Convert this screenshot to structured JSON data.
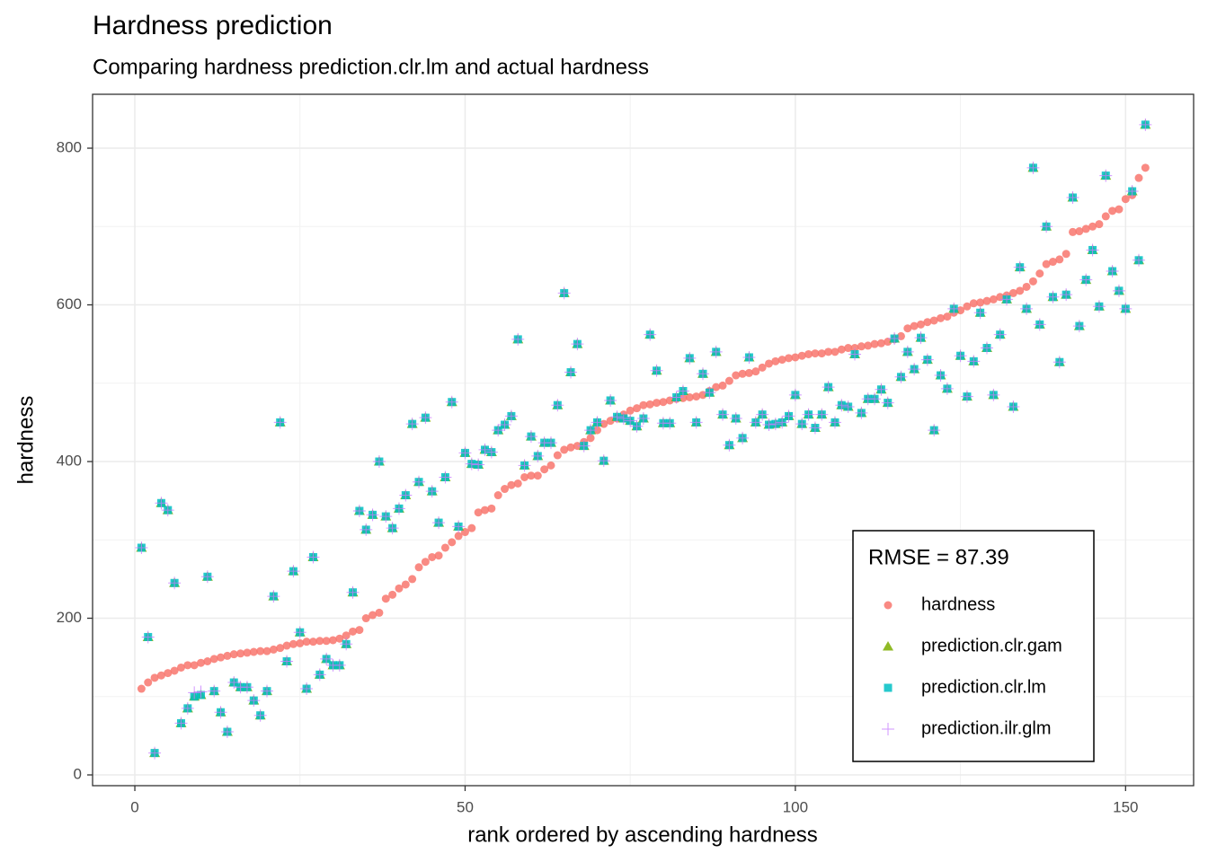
{
  "chart_data": {
    "type": "scatter",
    "title": "Hardness prediction",
    "subtitle": "Comparing hardness prediction.clr.lm and actual hardness",
    "x_label": "rank ordered by ascending hardness",
    "y_label": "hardness",
    "legend_title": "RMSE =  87.39",
    "legend_position": "bottom-right",
    "grid": true,
    "xlim": [
      -6.4,
      160.3
    ],
    "ylim": [
      -13.75,
      868.8
    ],
    "xticks": [
      0,
      50,
      100,
      150
    ],
    "yticks": [
      0,
      200,
      400,
      600,
      800
    ],
    "minor_xticks": [
      25,
      75,
      125
    ],
    "minor_yticks": [
      100,
      300,
      500,
      700
    ],
    "x": [
      1,
      2,
      3,
      4,
      5,
      6,
      7,
      8,
      9,
      10,
      11,
      12,
      13,
      14,
      15,
      16,
      17,
      18,
      19,
      20,
      21,
      22,
      23,
      24,
      25,
      26,
      27,
      28,
      29,
      30,
      31,
      32,
      33,
      34,
      35,
      36,
      37,
      38,
      39,
      40,
      41,
      42,
      43,
      44,
      45,
      46,
      47,
      48,
      49,
      50,
      51,
      52,
      53,
      54,
      55,
      56,
      57,
      58,
      59,
      60,
      61,
      62,
      63,
      64,
      65,
      66,
      67,
      68,
      69,
      70,
      71,
      72,
      73,
      74,
      75,
      76,
      77,
      78,
      79,
      80,
      81,
      82,
      83,
      84,
      85,
      86,
      87,
      88,
      89,
      90,
      91,
      92,
      93,
      94,
      95,
      96,
      97,
      98,
      99,
      100,
      101,
      102,
      103,
      104,
      105,
      106,
      107,
      108,
      109,
      110,
      111,
      112,
      113,
      114,
      115,
      116,
      117,
      118,
      119,
      120,
      121,
      122,
      123,
      124,
      125,
      126,
      127,
      128,
      129,
      130,
      131,
      132,
      133,
      134,
      135,
      136,
      137,
      138,
      139,
      140,
      141,
      142,
      143,
      144,
      145,
      146,
      147,
      148,
      149,
      150,
      151,
      152,
      153
    ],
    "series": [
      {
        "name": "hardness",
        "color": "#F8766D",
        "marker": "circle",
        "values": [
          110,
          118,
          124,
          127,
          130,
          133,
          137,
          140,
          140,
          143,
          145,
          148,
          150,
          152,
          154,
          155,
          156,
          157,
          158,
          158,
          160,
          162,
          165,
          167,
          168,
          170,
          170,
          171,
          171,
          172,
          174,
          178,
          183,
          185,
          200,
          204,
          207,
          225,
          230,
          238,
          243,
          250,
          265,
          272,
          278,
          280,
          290,
          297,
          305,
          310,
          315,
          335,
          338,
          340,
          357,
          365,
          370,
          372,
          380,
          382,
          382,
          390,
          395,
          408,
          415,
          418,
          420,
          425,
          430,
          440,
          448,
          452,
          455,
          460,
          465,
          468,
          472,
          473,
          475,
          476,
          478,
          480,
          481,
          482,
          483,
          485,
          490,
          495,
          497,
          503,
          510,
          512,
          513,
          515,
          520,
          525,
          528,
          530,
          532,
          533,
          535,
          537,
          538,
          538,
          540,
          540,
          543,
          545,
          545,
          547,
          548,
          550,
          551,
          553,
          556,
          560,
          570,
          573,
          575,
          578,
          580,
          583,
          585,
          590,
          593,
          598,
          602,
          603,
          605,
          607,
          610,
          612,
          615,
          618,
          623,
          630,
          640,
          652,
          655,
          658,
          665,
          693,
          694,
          697,
          700,
          703,
          713,
          720,
          722,
          735,
          740,
          762,
          775
        ]
      },
      {
        "name": "prediction.clr.gam",
        "color": "#7CAE00",
        "marker": "triangle",
        "values": [
          290,
          176,
          28,
          347,
          338,
          245,
          66,
          85,
          100,
          102,
          253,
          107,
          80,
          55,
          118,
          112,
          112,
          95,
          76,
          107,
          228,
          450,
          145,
          260,
          182,
          110,
          278,
          128,
          148,
          140,
          140,
          167,
          233,
          337,
          313,
          332,
          400,
          330,
          315,
          340,
          357,
          448,
          374,
          456,
          362,
          322,
          380,
          476,
          317,
          411,
          397,
          396,
          415,
          412,
          440,
          447,
          458,
          556,
          395,
          432,
          407,
          424,
          424,
          472,
          615,
          514,
          550,
          420,
          440,
          450,
          401,
          478,
          457,
          455,
          452,
          445,
          455,
          562,
          516,
          449,
          449,
          482,
          490,
          532,
          450,
          512,
          488,
          540,
          460,
          421,
          455,
          430,
          533,
          450,
          460,
          447,
          448,
          450,
          458,
          485,
          448,
          460,
          443,
          460,
          495,
          450,
          472,
          470,
          537,
          462,
          480,
          480,
          492,
          475,
          557,
          508,
          540,
          518,
          558,
          530,
          440,
          510,
          493,
          595,
          535,
          483,
          528,
          590,
          545,
          485,
          562,
          607,
          470,
          648,
          595,
          775,
          575,
          700,
          610,
          527,
          613,
          737,
          573,
          632,
          670,
          598,
          765,
          643,
          618,
          595,
          745,
          657,
          830
        ]
      },
      {
        "name": "prediction.clr.lm",
        "color": "#00BFC4",
        "marker": "square",
        "values": [
          290,
          176,
          28,
          347,
          338,
          245,
          66,
          85,
          100,
          102,
          253,
          107,
          80,
          55,
          118,
          112,
          112,
          95,
          76,
          107,
          228,
          450,
          145,
          260,
          182,
          110,
          278,
          128,
          148,
          140,
          140,
          167,
          233,
          337,
          313,
          332,
          400,
          330,
          315,
          340,
          357,
          448,
          374,
          456,
          362,
          322,
          380,
          476,
          317,
          411,
          397,
          396,
          415,
          412,
          440,
          447,
          458,
          556,
          395,
          432,
          407,
          424,
          424,
          472,
          615,
          514,
          550,
          420,
          440,
          450,
          401,
          478,
          457,
          455,
          452,
          445,
          455,
          562,
          516,
          449,
          449,
          482,
          490,
          532,
          450,
          512,
          488,
          540,
          460,
          421,
          455,
          430,
          533,
          450,
          460,
          447,
          448,
          450,
          458,
          485,
          448,
          460,
          443,
          460,
          495,
          450,
          472,
          470,
          537,
          462,
          480,
          480,
          492,
          475,
          557,
          508,
          540,
          518,
          558,
          530,
          440,
          510,
          493,
          595,
          535,
          483,
          528,
          590,
          545,
          485,
          562,
          607,
          470,
          648,
          595,
          775,
          575,
          700,
          610,
          527,
          613,
          737,
          573,
          632,
          670,
          598,
          765,
          643,
          618,
          595,
          745,
          657,
          830
        ]
      },
      {
        "name": "prediction.ilr.glm",
        "color": "#C77CFF",
        "marker": "plus",
        "values": [
          290,
          176,
          28,
          347,
          338,
          245,
          66,
          85,
          105,
          106,
          253,
          107,
          80,
          55,
          118,
          112,
          112,
          95,
          76,
          107,
          228,
          450,
          145,
          260,
          182,
          110,
          278,
          128,
          148,
          140,
          140,
          167,
          233,
          337,
          313,
          332,
          400,
          330,
          315,
          340,
          357,
          448,
          374,
          456,
          362,
          322,
          380,
          476,
          317,
          411,
          397,
          396,
          415,
          412,
          440,
          447,
          458,
          556,
          395,
          432,
          407,
          424,
          424,
          472,
          615,
          514,
          550,
          420,
          440,
          450,
          401,
          478,
          457,
          455,
          452,
          445,
          455,
          562,
          516,
          449,
          449,
          482,
          490,
          532,
          450,
          512,
          488,
          540,
          460,
          421,
          455,
          430,
          533,
          450,
          460,
          447,
          448,
          450,
          458,
          485,
          448,
          460,
          443,
          460,
          495,
          450,
          472,
          470,
          537,
          462,
          480,
          480,
          492,
          475,
          557,
          508,
          540,
          518,
          558,
          530,
          440,
          510,
          493,
          595,
          535,
          483,
          528,
          590,
          545,
          485,
          562,
          607,
          470,
          648,
          595,
          775,
          575,
          700,
          610,
          527,
          613,
          737,
          573,
          632,
          670,
          598,
          765,
          643,
          618,
          595,
          745,
          657,
          830
        ]
      }
    ]
  }
}
